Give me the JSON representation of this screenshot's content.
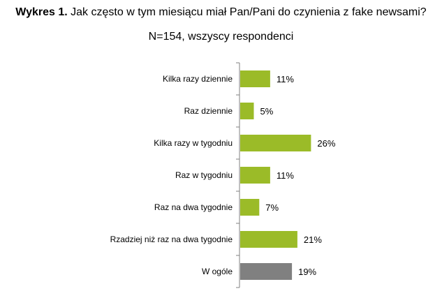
{
  "header": {
    "title_lead": "Wykres 1.",
    "title_rest": "Jak często w tym miesiącu miał Pan/Pani do czynienia z fake newsami?",
    "subtitle": "N=154, wszyscy respondenci"
  },
  "chart_data": {
    "type": "bar",
    "orientation": "horizontal",
    "title": "Jak często w tym miesiącu miał Pan/Pani do czynienia z fake newsami?",
    "subtitle": "N=154, wszyscy respondenci",
    "categories": [
      "Kilka razy dziennie",
      "Raz dziennie",
      "Kilka razy w tygodniu",
      "Raz w tygodniu",
      "Raz na dwa tygodnie",
      "Rzadziej niż raz na dwa tygodnie",
      "W ogóle"
    ],
    "values": [
      11,
      5,
      26,
      11,
      7,
      21,
      19
    ],
    "value_labels": [
      "11%",
      "5%",
      "26%",
      "11%",
      "7%",
      "21%",
      "19%"
    ],
    "unit": "%",
    "xlim": [
      0,
      100
    ],
    "colors": [
      "#9bbb28",
      "#9bbb28",
      "#9bbb28",
      "#9bbb28",
      "#9bbb28",
      "#9bbb28",
      "#808080"
    ],
    "grid": false,
    "legend": "none"
  }
}
